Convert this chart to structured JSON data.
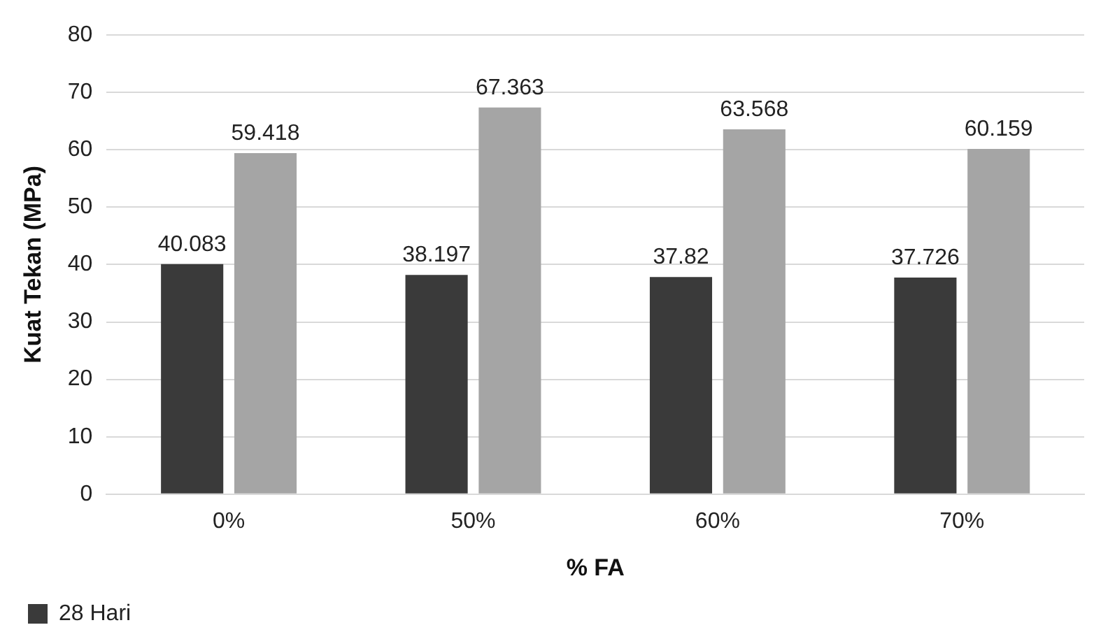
{
  "chart_data": {
    "type": "bar",
    "xlabel": "% FA",
    "ylabel": "Kuat Tekan (MPa)",
    "categories": [
      "0%",
      "50%",
      "60%",
      "70%"
    ],
    "series": [
      {
        "name": "28 Hari",
        "color": "#3a3a3a",
        "values": [
          40.083,
          38.197,
          37.82,
          37.726
        ]
      },
      {
        "color": "#a5a5a5",
        "values": [
          59.418,
          67.363,
          63.568,
          60.159
        ]
      }
    ],
    "ylim": [
      0,
      80
    ],
    "yticks": [
      0,
      10,
      20,
      30,
      40,
      50,
      60,
      70,
      80
    ],
    "grid": "y",
    "legend": "bottom left",
    "data_labels": true
  }
}
